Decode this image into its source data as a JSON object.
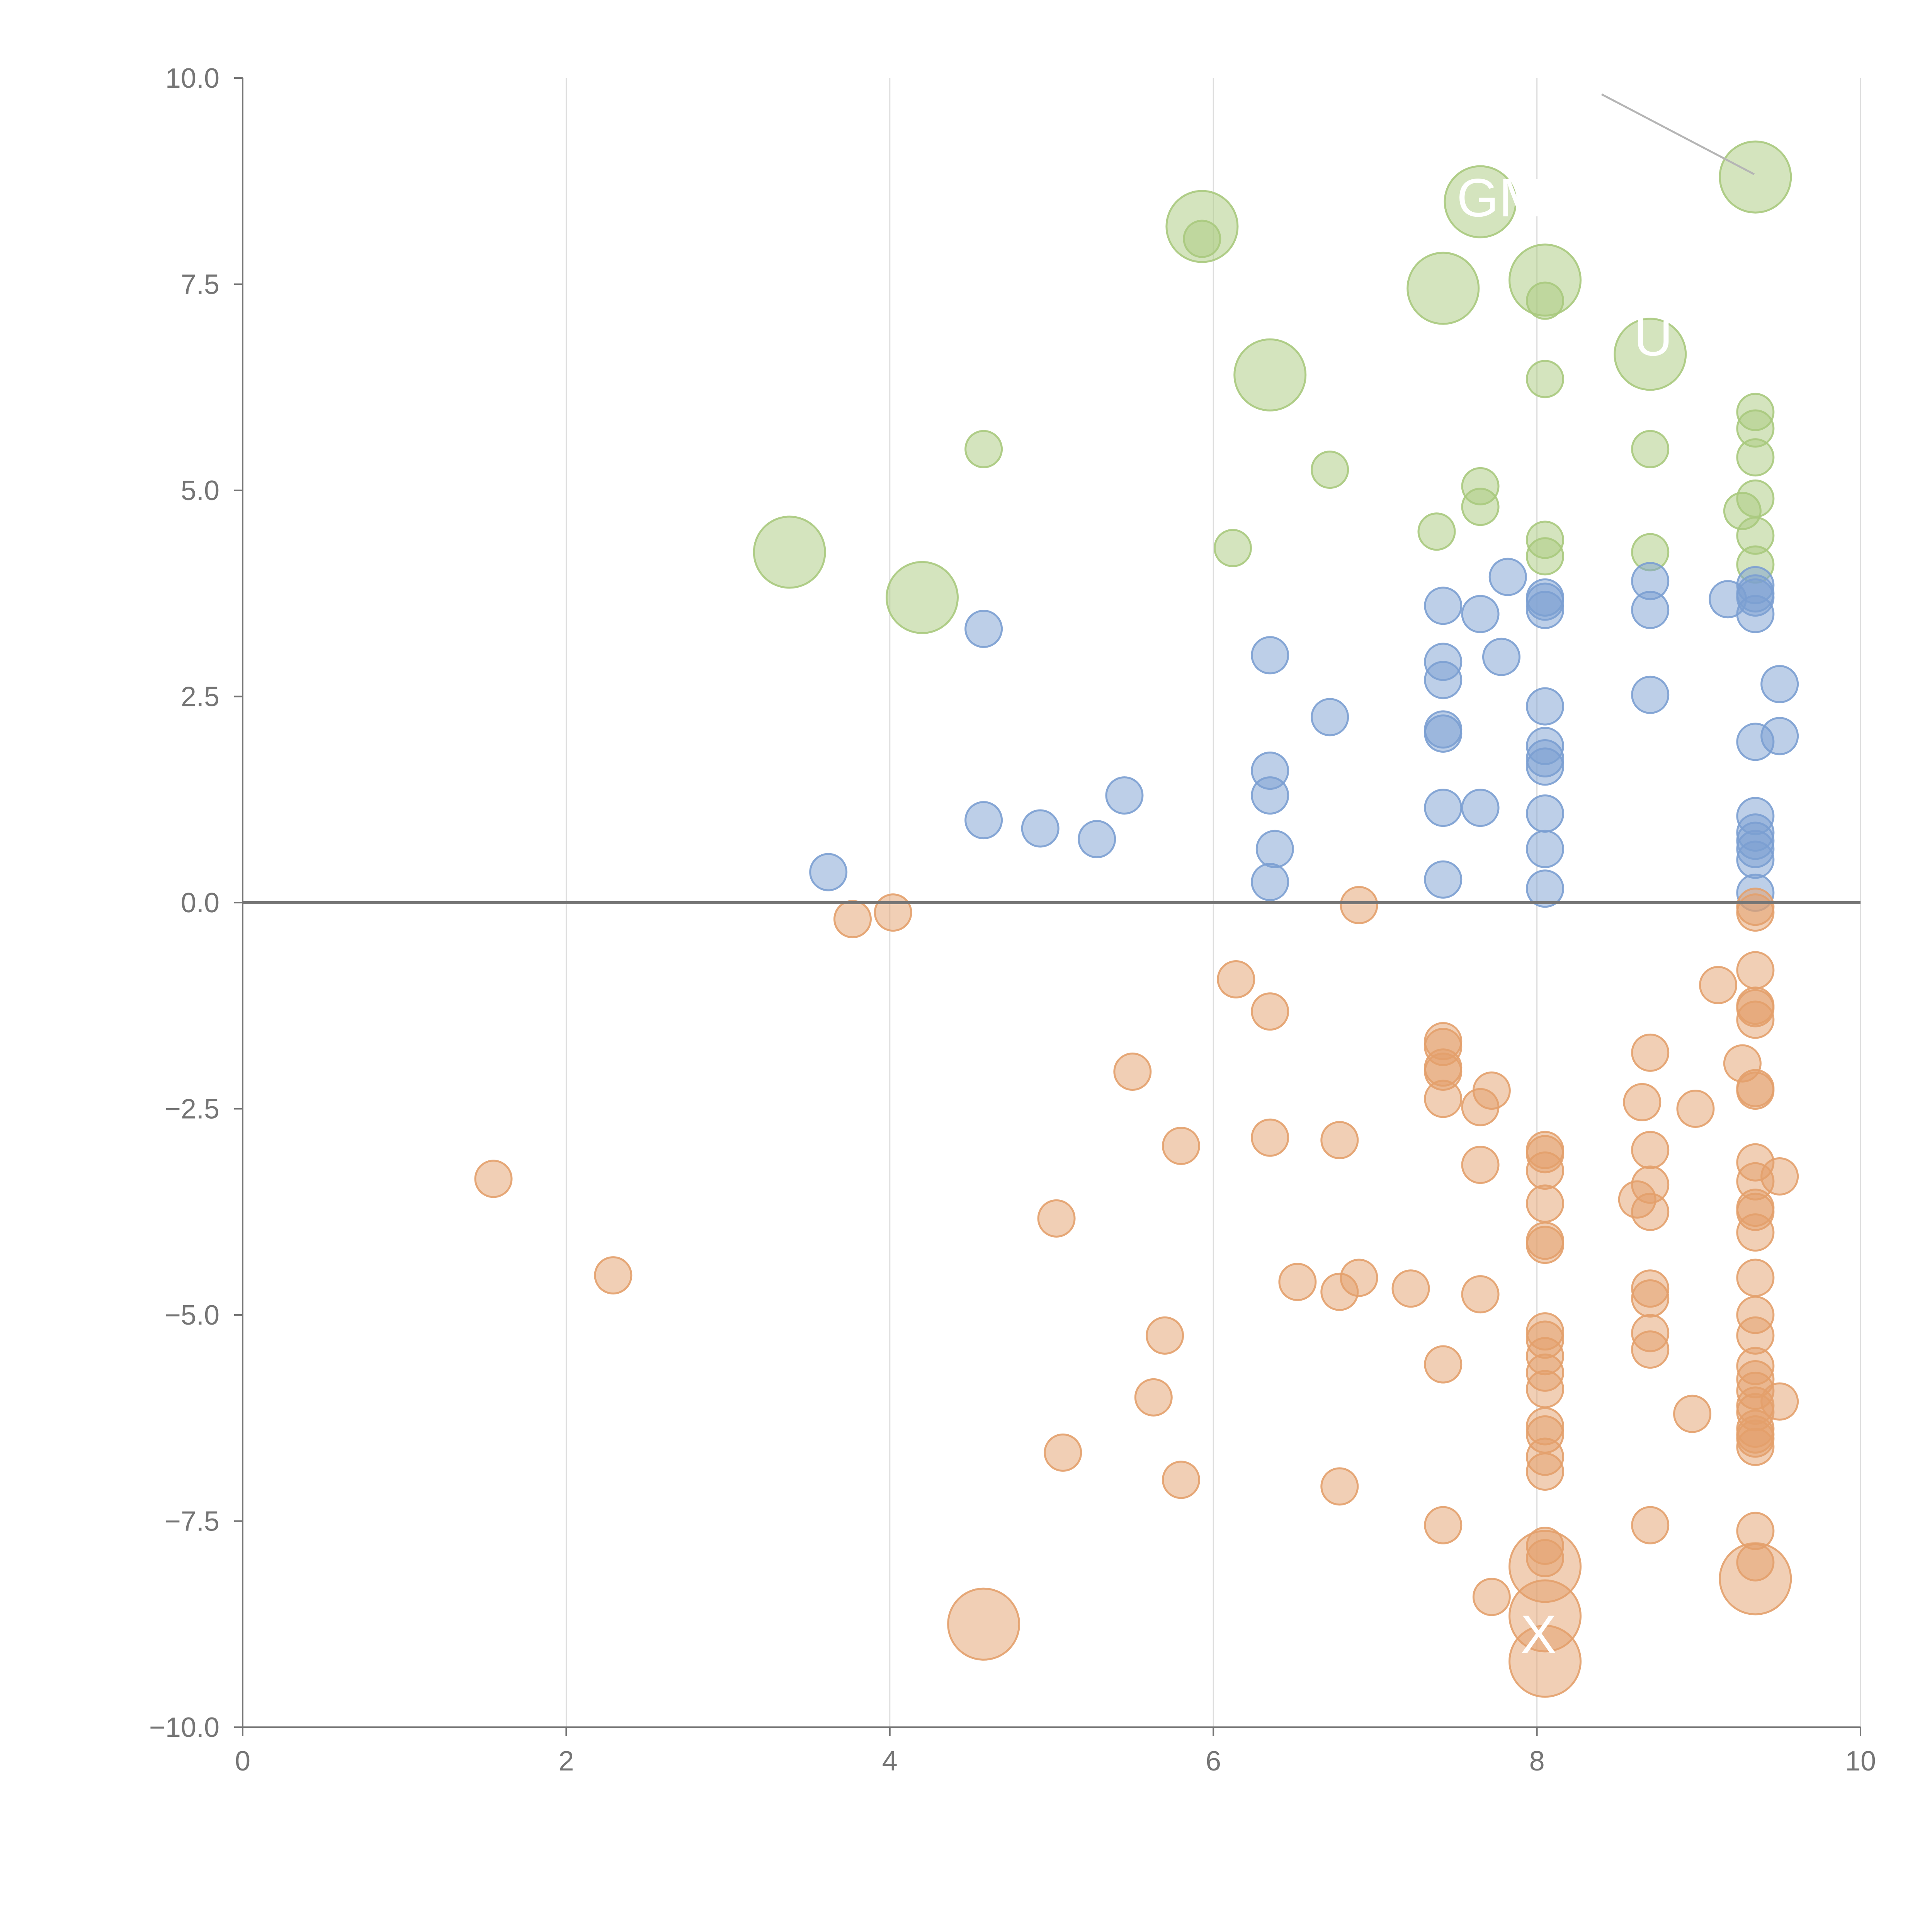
{
  "chart_data": {
    "type": "scatter",
    "title": "",
    "xlabel": "",
    "ylabel": "",
    "xlim": [
      0,
      10
    ],
    "ylim": [
      -10,
      10
    ],
    "x_ticks": [
      0,
      2,
      4,
      6,
      8,
      10
    ],
    "y_ticks": [
      -10.0,
      -7.5,
      -5.0,
      -2.5,
      0.0,
      2.5,
      5.0,
      7.5,
      10.0
    ],
    "x_tick_labels": [
      "0",
      "2",
      "4",
      "6",
      "8",
      "10"
    ],
    "y_tick_labels": [
      "−10.0",
      "−7.5",
      "−5.0",
      "−2.5",
      "0.0",
      "2.5",
      "5.0",
      "7.5",
      "10.0"
    ],
    "vertical_grid": true,
    "zero_line": true,
    "colors": {
      "green": "#a9c97d",
      "blue": "#7b9fd2",
      "orange": "#e3a06b",
      "axis": "#757575",
      "grid": "#dddddd"
    },
    "series": [
      {
        "name": "green",
        "color": "#a9c97d",
        "points": [
          [
            9.35,
            8.8,
            2
          ],
          [
            7.65,
            8.5,
            2
          ],
          [
            5.93,
            8.2,
            2
          ],
          [
            5.93,
            8.05,
            1
          ],
          [
            8.05,
            7.55,
            2
          ],
          [
            7.42,
            7.45,
            2
          ],
          [
            8.05,
            7.3,
            1
          ],
          [
            8.7,
            6.65,
            2
          ],
          [
            6.35,
            6.4,
            2
          ],
          [
            8.05,
            6.35,
            1
          ],
          [
            9.35,
            5.95,
            1
          ],
          [
            9.35,
            5.75,
            1
          ],
          [
            4.58,
            5.5,
            1
          ],
          [
            8.7,
            5.5,
            1
          ],
          [
            9.35,
            5.4,
            1
          ],
          [
            6.72,
            5.25,
            1
          ],
          [
            7.65,
            5.05,
            1
          ],
          [
            9.35,
            4.9,
            1
          ],
          [
            7.65,
            4.8,
            1
          ],
          [
            9.27,
            4.75,
            1
          ],
          [
            7.38,
            4.5,
            1
          ],
          [
            9.35,
            4.45,
            1
          ],
          [
            8.05,
            4.4,
            1
          ],
          [
            3.38,
            4.25,
            2
          ],
          [
            6.12,
            4.3,
            1
          ],
          [
            8.7,
            4.25,
            1
          ],
          [
            8.05,
            4.2,
            1
          ],
          [
            9.35,
            4.1,
            1
          ],
          [
            4.2,
            3.7,
            2
          ]
        ]
      },
      {
        "name": "blue",
        "color": "#7b9fd2",
        "points": [
          [
            7.82,
            3.95,
            1
          ],
          [
            8.7,
            3.9,
            1
          ],
          [
            9.35,
            3.85,
            1
          ],
          [
            9.35,
            3.75,
            1
          ],
          [
            9.18,
            3.68,
            1
          ],
          [
            8.05,
            3.7,
            1
          ],
          [
            9.35,
            3.7,
            1
          ],
          [
            8.05,
            3.65,
            1
          ],
          [
            7.42,
            3.6,
            1
          ],
          [
            8.05,
            3.55,
            1
          ],
          [
            8.7,
            3.55,
            1
          ],
          [
            7.65,
            3.5,
            1
          ],
          [
            9.35,
            3.5,
            1
          ],
          [
            4.58,
            3.32,
            1
          ],
          [
            6.35,
            3.0,
            1
          ],
          [
            7.78,
            2.98,
            1
          ],
          [
            7.42,
            2.92,
            1
          ],
          [
            7.42,
            2.7,
            1
          ],
          [
            9.5,
            2.65,
            1
          ],
          [
            8.7,
            2.52,
            1
          ],
          [
            8.05,
            2.38,
            1
          ],
          [
            6.72,
            2.25,
            1
          ],
          [
            7.42,
            2.1,
            1
          ],
          [
            7.42,
            2.05,
            1
          ],
          [
            9.5,
            2.02,
            1
          ],
          [
            9.35,
            1.95,
            1
          ],
          [
            8.05,
            1.9,
            1
          ],
          [
            8.05,
            1.75,
            1
          ],
          [
            8.05,
            1.65,
            1
          ],
          [
            6.35,
            1.6,
            1
          ],
          [
            5.45,
            1.3,
            1
          ],
          [
            6.35,
            1.3,
            1
          ],
          [
            7.42,
            1.15,
            1
          ],
          [
            7.65,
            1.15,
            1
          ],
          [
            8.05,
            1.08,
            1
          ],
          [
            9.35,
            1.05,
            1
          ],
          [
            4.58,
            1.0,
            1
          ],
          [
            4.93,
            0.9,
            1
          ],
          [
            9.35,
            0.85,
            1
          ],
          [
            5.28,
            0.77,
            1
          ],
          [
            9.35,
            0.75,
            1
          ],
          [
            6.38,
            0.65,
            1
          ],
          [
            8.05,
            0.65,
            1
          ],
          [
            9.35,
            0.65,
            1
          ],
          [
            9.35,
            0.52,
            1
          ],
          [
            3.62,
            0.37,
            1
          ],
          [
            7.42,
            0.28,
            1
          ],
          [
            6.35,
            0.25,
            1
          ],
          [
            8.05,
            0.17,
            1
          ],
          [
            9.35,
            0.12,
            1
          ]
        ]
      },
      {
        "name": "orange",
        "color": "#e3a06b",
        "points": [
          [
            6.9,
            -0.03,
            1
          ],
          [
            9.35,
            -0.05,
            1
          ],
          [
            9.35,
            -0.12,
            1
          ],
          [
            4.02,
            -0.12,
            1
          ],
          [
            3.77,
            -0.2,
            1
          ],
          [
            9.35,
            -0.82,
            1
          ],
          [
            6.14,
            -0.93,
            1
          ],
          [
            9.12,
            -1.0,
            1
          ],
          [
            9.35,
            -1.25,
            1
          ],
          [
            9.35,
            -1.28,
            1
          ],
          [
            6.35,
            -1.32,
            1
          ],
          [
            9.35,
            -1.42,
            1
          ],
          [
            7.42,
            -1.68,
            1
          ],
          [
            7.42,
            -1.75,
            1
          ],
          [
            8.7,
            -1.82,
            1
          ],
          [
            9.27,
            -1.95,
            1
          ],
          [
            7.42,
            -2.0,
            1
          ],
          [
            7.42,
            -2.05,
            1
          ],
          [
            5.5,
            -2.05,
            1
          ],
          [
            9.35,
            -2.25,
            1
          ],
          [
            9.35,
            -2.28,
            1
          ],
          [
            7.72,
            -2.28,
            1
          ],
          [
            7.42,
            -2.38,
            1
          ],
          [
            8.65,
            -2.42,
            1
          ],
          [
            7.65,
            -2.48,
            1
          ],
          [
            8.98,
            -2.5,
            1
          ],
          [
            6.35,
            -2.85,
            1
          ],
          [
            6.78,
            -2.88,
            1
          ],
          [
            5.8,
            -2.95,
            1
          ],
          [
            8.05,
            -3.0,
            1
          ],
          [
            8.7,
            -3.0,
            1
          ],
          [
            8.05,
            -3.05,
            1
          ],
          [
            9.35,
            -3.15,
            1
          ],
          [
            7.65,
            -3.18,
            1
          ],
          [
            8.05,
            -3.25,
            1
          ],
          [
            9.5,
            -3.32,
            1
          ],
          [
            1.55,
            -3.35,
            1
          ],
          [
            9.35,
            -3.38,
            1
          ],
          [
            8.7,
            -3.42,
            1
          ],
          [
            8.62,
            -3.6,
            1
          ],
          [
            8.05,
            -3.65,
            1
          ],
          [
            9.35,
            -3.7,
            1
          ],
          [
            9.35,
            -3.75,
            1
          ],
          [
            8.7,
            -3.75,
            1
          ],
          [
            5.03,
            -3.83,
            1
          ],
          [
            9.35,
            -4.0,
            1
          ],
          [
            8.05,
            -4.1,
            1
          ],
          [
            8.05,
            -4.15,
            1
          ],
          [
            2.29,
            -4.52,
            1
          ],
          [
            9.35,
            -4.55,
            1
          ],
          [
            6.9,
            -4.55,
            1
          ],
          [
            6.52,
            -4.6,
            1
          ],
          [
            7.22,
            -4.68,
            1
          ],
          [
            8.7,
            -4.68,
            1
          ],
          [
            6.78,
            -4.72,
            1
          ],
          [
            7.65,
            -4.75,
            1
          ],
          [
            8.7,
            -4.8,
            1
          ],
          [
            9.35,
            -5.0,
            1
          ],
          [
            8.05,
            -5.2,
            1
          ],
          [
            8.7,
            -5.22,
            1
          ],
          [
            5.7,
            -5.25,
            1
          ],
          [
            9.35,
            -5.25,
            1
          ],
          [
            8.05,
            -5.3,
            1
          ],
          [
            8.7,
            -5.42,
            1
          ],
          [
            8.05,
            -5.5,
            1
          ],
          [
            7.42,
            -5.6,
            1
          ],
          [
            9.35,
            -5.62,
            1
          ],
          [
            8.05,
            -5.7,
            1
          ],
          [
            9.35,
            -5.78,
            1
          ],
          [
            8.05,
            -5.9,
            1
          ],
          [
            9.35,
            -5.92,
            1
          ],
          [
            5.63,
            -6.0,
            1
          ],
          [
            9.5,
            -6.05,
            1
          ],
          [
            9.35,
            -6.1,
            1
          ],
          [
            9.35,
            -6.18,
            1
          ],
          [
            8.96,
            -6.2,
            1
          ],
          [
            8.05,
            -6.35,
            1
          ],
          [
            9.35,
            -6.38,
            1
          ],
          [
            9.35,
            -6.45,
            1
          ],
          [
            8.05,
            -6.45,
            1
          ],
          [
            9.35,
            -6.5,
            1
          ],
          [
            9.35,
            -6.6,
            1
          ],
          [
            5.07,
            -6.67,
            1
          ],
          [
            8.05,
            -6.72,
            1
          ],
          [
            8.05,
            -6.9,
            1
          ],
          [
            5.8,
            -7.0,
            1
          ],
          [
            6.78,
            -7.08,
            1
          ],
          [
            7.42,
            -7.55,
            1
          ],
          [
            8.7,
            -7.55,
            1
          ],
          [
            9.35,
            -7.62,
            1
          ],
          [
            8.05,
            -7.8,
            1
          ],
          [
            8.05,
            -7.95,
            1
          ],
          [
            8.05,
            -8.05,
            2
          ],
          [
            9.35,
            -8.0,
            1
          ],
          [
            9.35,
            -8.2,
            2
          ],
          [
            7.72,
            -8.42,
            1
          ],
          [
            8.05,
            -8.65,
            2
          ],
          [
            4.58,
            -8.75,
            2
          ],
          [
            8.05,
            -9.2,
            2
          ]
        ]
      }
    ],
    "bubble_labels": [
      "GM",
      "U",
      "X"
    ]
  }
}
